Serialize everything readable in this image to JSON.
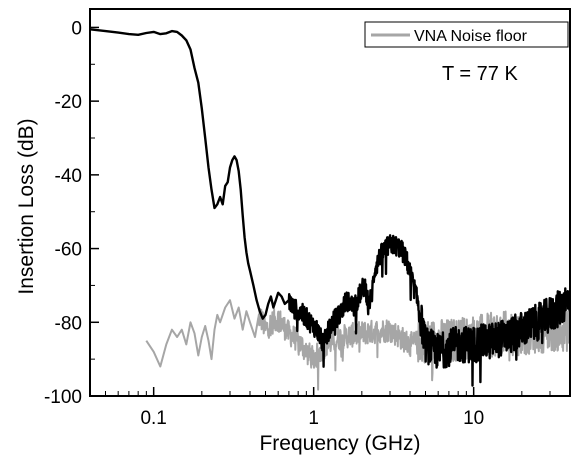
{
  "chart_data": {
    "type": "line",
    "title": "",
    "xlabel": "Frequency (GHz)",
    "ylabel": "Insertion Loss (dB)",
    "x_scale": "log",
    "xlim": [
      0.04,
      40
    ],
    "ylim": [
      -100,
      5
    ],
    "x_ticks": [
      0.1,
      1,
      10
    ],
    "x_tick_labels": [
      "0.1",
      "1",
      "10"
    ],
    "y_ticks": [
      0,
      -20,
      -40,
      -60,
      -80,
      -100
    ],
    "y_tick_labels": [
      "0",
      "-20",
      "-40",
      "-60",
      "-80",
      "-100"
    ],
    "grid": false,
    "legend_position": "top-right",
    "annotation": "T = 77 K",
    "series": [
      {
        "label": "",
        "color": "#000000",
        "noisy_from": 0.7,
        "x": [
          0.04,
          0.05,
          0.06,
          0.07,
          0.08,
          0.09,
          0.1,
          0.11,
          0.12,
          0.13,
          0.14,
          0.15,
          0.16,
          0.17,
          0.18,
          0.19,
          0.2,
          0.21,
          0.22,
          0.23,
          0.24,
          0.25,
          0.26,
          0.27,
          0.28,
          0.29,
          0.3,
          0.31,
          0.32,
          0.33,
          0.34,
          0.35,
          0.36,
          0.37,
          0.38,
          0.39,
          0.4,
          0.42,
          0.44,
          0.46,
          0.48,
          0.5,
          0.52,
          0.54,
          0.56,
          0.58,
          0.6,
          0.63,
          0.66,
          0.7,
          0.74,
          0.8,
          0.87,
          0.95,
          1.05,
          1.15,
          1.3,
          1.45,
          1.6,
          1.8,
          2.0,
          2.1,
          2.2,
          2.3,
          2.4,
          2.6,
          2.8,
          3.0,
          3.2,
          3.5,
          3.8,
          4.1,
          4.5,
          5.0,
          6.0,
          8.0,
          10.0,
          13.0,
          16.0,
          20.0,
          25.0,
          30.0,
          35.0,
          40.0
        ],
        "y": [
          -0.5,
          -1.0,
          -1.4,
          -1.8,
          -2.0,
          -1.5,
          -1.2,
          -1.8,
          -1.6,
          -1.0,
          -1.2,
          -2.2,
          -3.5,
          -6.0,
          -11.0,
          -15.0,
          -22.0,
          -30.0,
          -38.0,
          -44.0,
          -49.0,
          -48.0,
          -46.0,
          -48.0,
          -43.0,
          -42.0,
          -38.0,
          -36.0,
          -35.0,
          -36.0,
          -39.0,
          -44.0,
          -51.0,
          -57.0,
          -61.0,
          -64.0,
          -66.0,
          -70.0,
          -74.0,
          -77.0,
          -79.0,
          -78.0,
          -75.0,
          -73.0,
          -76.0,
          -74.0,
          -72.0,
          -73.0,
          -75.0,
          -74.0,
          -76.0,
          -77.0,
          -78.0,
          -80.0,
          -82.0,
          -86.0,
          -80.0,
          -78.0,
          -74.0,
          -76.0,
          -71.0,
          -70.0,
          -75.0,
          -73.0,
          -66.0,
          -62.0,
          -60.0,
          -59.0,
          -59.0,
          -60.0,
          -63.0,
          -68.0,
          -75.0,
          -86.0,
          -88.0,
          -86.0,
          -86.0,
          -85.0,
          -84.0,
          -82.0,
          -80.0,
          -78.0,
          -76.0,
          -73.0
        ]
      },
      {
        "label": "VNA Noise floor",
        "color": "#a6a6a6",
        "noisy_from": 0.45,
        "x": [
          0.09,
          0.1,
          0.11,
          0.12,
          0.13,
          0.14,
          0.15,
          0.16,
          0.17,
          0.18,
          0.19,
          0.2,
          0.21,
          0.22,
          0.23,
          0.24,
          0.25,
          0.26,
          0.28,
          0.3,
          0.32,
          0.34,
          0.36,
          0.38,
          0.4,
          0.43,
          0.46,
          0.5,
          0.55,
          0.6,
          0.7,
          0.8,
          0.9,
          1.0,
          1.2,
          1.5,
          2.0,
          3.0,
          4.0,
          5.0,
          7.0,
          10.0,
          15.0,
          20.0,
          30.0,
          40.0
        ],
        "y": [
          -85.0,
          -88.0,
          -92.0,
          -86.0,
          -82.0,
          -84.0,
          -82.0,
          -86.0,
          -80.0,
          -83.0,
          -89.0,
          -84.0,
          -81.0,
          -85.0,
          -90.0,
          -82.0,
          -78.0,
          -80.0,
          -76.0,
          -74.0,
          -79.0,
          -76.0,
          -82.0,
          -77.0,
          -80.0,
          -84.0,
          -78.0,
          -82.0,
          -80.0,
          -79.0,
          -83.0,
          -85.0,
          -88.0,
          -90.0,
          -86.0,
          -84.0,
          -83.0,
          -82.0,
          -86.0,
          -85.0,
          -85.0,
          -84.0,
          -83.0,
          -83.0,
          -82.0,
          -82.0
        ]
      }
    ]
  }
}
